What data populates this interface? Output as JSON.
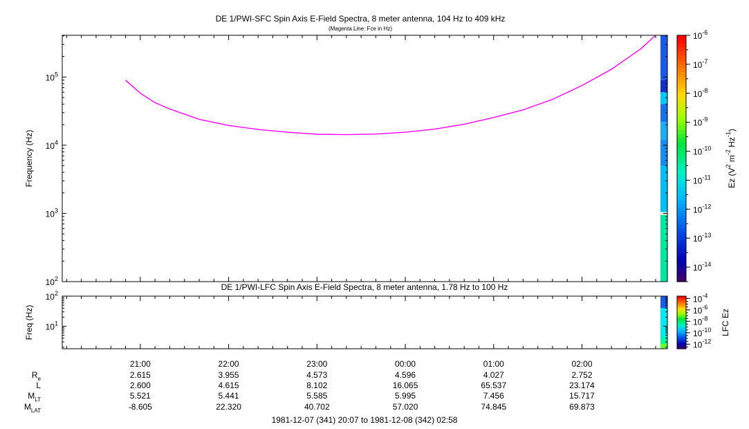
{
  "chart_data": [
    {
      "type": "heatmap",
      "title": "DE 1/PWI-SFC  Spin Axis E-Field Spectra, 8 meter antenna, 104 Hz to 409 kHz",
      "subtitle": "(Magenta Line: Fce in Hz)",
      "ylabel": "Frequency (Hz)",
      "yscale": "log",
      "ylim": [
        100,
        409000
      ],
      "yticks": [
        {
          "value": 100,
          "base": "10",
          "exp": "2"
        },
        {
          "value": 1000,
          "base": "10",
          "exp": "3"
        },
        {
          "value": 10000,
          "base": "10",
          "exp": "4"
        },
        {
          "value": 100000,
          "base": "10",
          "exp": "5"
        }
      ],
      "xlim": [
        "1981-12-07 20:07",
        "1981-12-08 02:58"
      ],
      "fce_line": {
        "name": "Fce",
        "color": "#ff00ff",
        "points": [
          [
            "1981-12-07 20:50",
            90000
          ],
          [
            "1981-12-07 21:00",
            58000
          ],
          [
            "1981-12-07 21:10",
            42000
          ],
          [
            "1981-12-07 21:20",
            34000
          ],
          [
            "1981-12-07 21:40",
            24000
          ],
          [
            "1981-12-07 22:00",
            19500
          ],
          [
            "1981-12-07 22:20",
            17000
          ],
          [
            "1981-12-07 22:40",
            15500
          ],
          [
            "1981-12-07 23:00",
            14500
          ],
          [
            "1981-12-07 23:20",
            14300
          ],
          [
            "1981-12-07 23:40",
            14600
          ],
          [
            "1981-12-08 00:00",
            15500
          ],
          [
            "1981-12-08 00:20",
            17200
          ],
          [
            "1981-12-08 00:40",
            20300
          ],
          [
            "1981-12-08 01:00",
            25500
          ],
          [
            "1981-12-08 01:20",
            33000
          ],
          [
            "1981-12-08 01:40",
            47000
          ],
          [
            "1981-12-08 02:00",
            75000
          ],
          [
            "1981-12-08 02:20",
            130000
          ],
          [
            "1981-12-08 02:40",
            260000
          ],
          [
            "1981-12-08 02:50",
            409000
          ]
        ]
      },
      "data_strip": [
        {
          "from": 100,
          "to": 950,
          "color": "#00e8a0"
        },
        {
          "from": 950,
          "to": 1050,
          "color": "#e8e8e8"
        },
        {
          "from": 1050,
          "to": 5000,
          "color": "#00bff0"
        },
        {
          "from": 5000,
          "to": 12000,
          "color": "#1a8cf0"
        },
        {
          "from": 12000,
          "to": 22000,
          "color": "#20aaf0"
        },
        {
          "from": 22000,
          "to": 40000,
          "color": "#1a70e6"
        },
        {
          "from": 40000,
          "to": 60000,
          "color": "#00c8f0"
        },
        {
          "from": 60000,
          "to": 90000,
          "color": "#1030c8"
        },
        {
          "from": 90000,
          "to": 409000,
          "color": "#1a5ae6"
        }
      ],
      "colorbar": {
        "label_base": "Ez (V",
        "label_parts": [
          "Ez (V",
          "2",
          " m",
          "-2",
          " Hz",
          "-1",
          ")"
        ],
        "ticks": [
          {
            "base": "10",
            "exp": "-6"
          },
          {
            "base": "10",
            "exp": "-7"
          },
          {
            "base": "10",
            "exp": "-8"
          },
          {
            "base": "10",
            "exp": "-9"
          },
          {
            "base": "10",
            "exp": "-10"
          },
          {
            "base": "10",
            "exp": "-11"
          },
          {
            "base": "10",
            "exp": "-12"
          },
          {
            "base": "10",
            "exp": "-13"
          },
          {
            "base": "10",
            "exp": "-14"
          }
        ],
        "range_log10": [
          -14.5,
          -6
        ]
      }
    },
    {
      "type": "heatmap",
      "title": "DE 1/PWI-LFC  Spin Axis E-Field Spectra, 8 meter antenna, 1.78 Hz to 100 Hz",
      "ylabel": "Freq (Hz)",
      "yscale": "log",
      "ylim": [
        1.78,
        100
      ],
      "yticks": [
        {
          "value": 10,
          "base": "10",
          "exp": "1"
        },
        {
          "value": 100,
          "base": "10",
          "exp": "2"
        }
      ],
      "data_strip": [
        {
          "from": 1.78,
          "to": 2.6,
          "color": "#66ff33"
        },
        {
          "from": 2.6,
          "to": 3.5,
          "color": "#00ff88"
        },
        {
          "from": 3.5,
          "to": 5,
          "color": "#00f0c8"
        },
        {
          "from": 5,
          "to": 40,
          "color": "#00e8f0"
        },
        {
          "from": 40,
          "to": 100,
          "color": "#1a5ae6"
        }
      ],
      "colorbar": {
        "label": "LFC Ez",
        "ticks": [
          {
            "base": "10",
            "exp": "-4"
          },
          {
            "base": "10",
            "exp": "-6"
          },
          {
            "base": "10",
            "exp": "-8"
          },
          {
            "base": "10",
            "exp": "-10"
          },
          {
            "base": "10",
            "exp": "-12"
          }
        ],
        "range_log10": [
          -12.8,
          -3.6
        ]
      }
    }
  ],
  "time_axis": {
    "labels": [
      "21:00",
      "22:00",
      "23:00",
      "00:00",
      "01:00",
      "02:00"
    ],
    "label_times": [
      "1981-12-07 21:00",
      "1981-12-07 22:00",
      "1981-12-07 23:00",
      "1981-12-08 00:00",
      "1981-12-08 01:00",
      "1981-12-08 02:00"
    ]
  },
  "ephemeris": [
    {
      "name": "R",
      "sub": "e",
      "values": [
        "2.615",
        "3.955",
        "4.573",
        "4.596",
        "4.027",
        "2.752"
      ]
    },
    {
      "name": "L",
      "sub": "",
      "values": [
        "2.600",
        "4.615",
        "8.102",
        "16.065",
        "65.537",
        "23.174"
      ]
    },
    {
      "name": "M",
      "sub": "LT",
      "values": [
        "5.521",
        "5.441",
        "5.585",
        "5.995",
        "7.456",
        "15.717"
      ]
    },
    {
      "name": "M",
      "sub": "LAT",
      "values": [
        "-8.605",
        "22.320",
        "40.702",
        "57.020",
        "74.845",
        "69.873"
      ]
    }
  ],
  "date_range": "1981-12-07 (341) 20:07 to 1981-12-08 (342) 02:58"
}
